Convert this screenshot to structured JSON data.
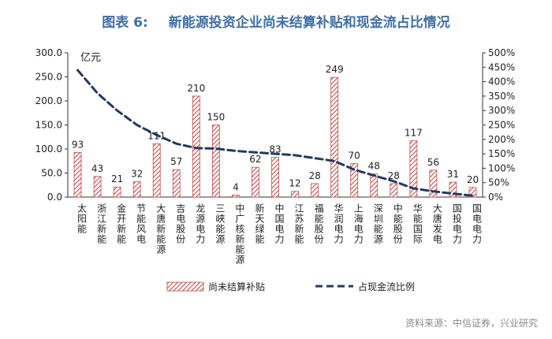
{
  "figure": {
    "number": "图表 6:",
    "title": "新能源投资企业尚未结算补贴和现金流占比情况",
    "source": "资料来源：中信证券，兴业研究"
  },
  "chart_data": {
    "type": "bar",
    "unit_label": "亿元",
    "categories": [
      "太阳能",
      "浙江新能",
      "金开新能",
      "节能风电",
      "大唐新能源",
      "吉电股份",
      "龙源电力",
      "三峡能源",
      "中广核新能源",
      "新天绿能",
      "中国电力",
      "江苏新能",
      "福能股份",
      "华润电力",
      "上海电力",
      "深圳能源",
      "中能股份",
      "华能国际",
      "大唐发电",
      "国投电力",
      "国电电力"
    ],
    "series": [
      {
        "name": "尚未结算补贴",
        "type": "bar",
        "axis": "left",
        "color": "#c0504d",
        "pattern": "diagonal-hatch",
        "values": [
          93,
          43,
          21,
          32,
          111,
          57,
          210,
          150,
          4,
          62,
          83,
          12,
          28,
          249,
          70,
          48,
          28,
          117,
          56,
          31,
          20
        ]
      },
      {
        "name": "占现金流比例",
        "type": "line",
        "axis": "right",
        "color": "#26395e",
        "style": "dashed",
        "values": [
          440,
          360,
          300,
          250,
          215,
          185,
          170,
          168,
          160,
          155,
          150,
          145,
          135,
          125,
          95,
          75,
          55,
          30,
          20,
          12,
          5
        ]
      }
    ],
    "y_left": {
      "min": 0,
      "max": 300,
      "ticks": [
        "0.0",
        "50.0",
        "100.0",
        "150.0",
        "200.0",
        "250.0",
        "300.0"
      ]
    },
    "y_right": {
      "min": 0,
      "max": 500,
      "ticks": [
        "0%",
        "50%",
        "100%",
        "150%",
        "200%",
        "250%",
        "300%",
        "350%",
        "400%",
        "450%",
        "500%"
      ]
    },
    "grid": false,
    "legend_position": "bottom"
  }
}
